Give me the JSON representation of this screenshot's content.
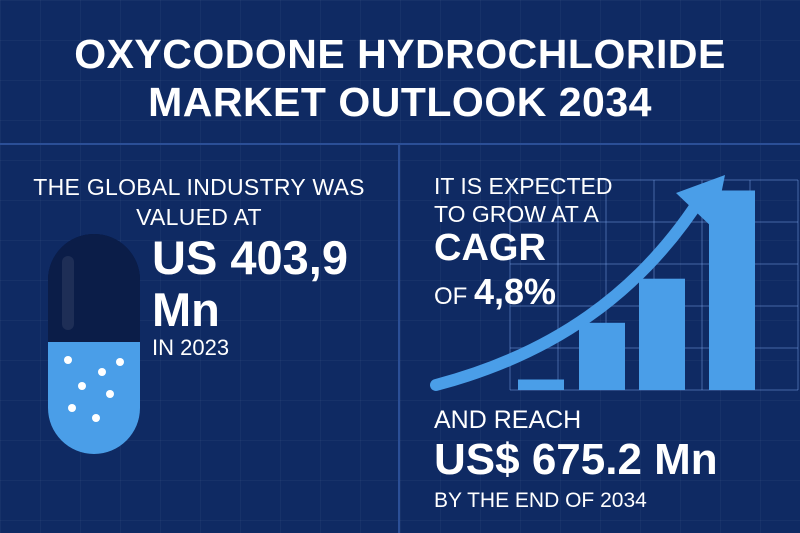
{
  "title": {
    "line1": "OXYCODONE HYDROCHLORIDE",
    "line2": "MARKET OUTLOOK 2034"
  },
  "left_panel": {
    "caption_line1": "THE GLOBAL INDUSTRY WAS",
    "caption_line2": "VALUED AT",
    "value": "US 403,9",
    "unit": "Mn",
    "year_text": "IN 2023",
    "icon": "pill-capsule-icon"
  },
  "right_panel": {
    "intro_line1": "IT IS EXPECTED",
    "intro_line2": "TO GROW AT A",
    "cagr_label": "CAGR",
    "cagr_of": "OF ",
    "cagr_value": "4,8%",
    "reach_label": "AND REACH",
    "reach_value": "US$ 675.2 Mn",
    "reach_year": "BY THE END OF 2034",
    "icon": "trend-arrow-icon"
  },
  "chart_data": {
    "type": "bar",
    "categories": [
      "",
      "",
      "",
      ""
    ],
    "values": [
      5,
      32,
      53,
      95
    ],
    "ylim": [
      0,
      100
    ],
    "grid": true,
    "color": "#4a9ee8"
  },
  "colors": {
    "background": "#0f2a63",
    "accent": "#4a9ee8",
    "text": "#ffffff"
  }
}
